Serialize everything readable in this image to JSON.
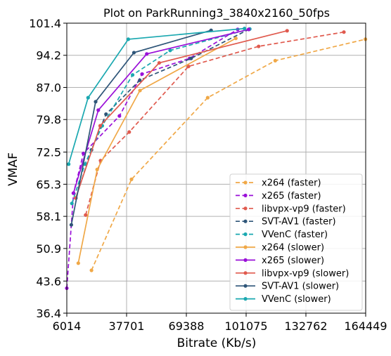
{
  "chart_data": {
    "type": "line",
    "title": "Plot on ParkRunning3_3840x2160_50fps",
    "xlabel": "Bitrate (Kb/s)",
    "ylabel": "VMAF",
    "xlim": [
      6014,
      164449
    ],
    "ylim": [
      36.4,
      101.4
    ],
    "xticks": [
      "6014",
      "37701",
      "69388",
      "101075",
      "132762",
      "164449"
    ],
    "yticks": [
      "36.4",
      "43.6",
      "50.9",
      "58.1",
      "65.3",
      "72.5",
      "79.8",
      "87.0",
      "94.2",
      "101.4"
    ],
    "grid": true,
    "legend_position": "lower-right",
    "series": [
      {
        "name": "x264 (faster)",
        "color": "#f0a847",
        "dash": "dashed",
        "x": [
          19100,
          40300,
          80700,
          116500,
          164300
        ],
        "y": [
          46.0,
          66.4,
          84.7,
          93.0,
          97.8
        ]
      },
      {
        "name": "x265 (faster)",
        "color": "#9a10d8",
        "dash": "dashed",
        "x": [
          6000,
          9600,
          14800,
          33900,
          45900,
          71100,
          96600
        ],
        "y": [
          42.0,
          63.3,
          72.2,
          80.6,
          90.0,
          93.5,
          100.0
        ]
      },
      {
        "name": "libvpx-vp9 (faster)",
        "color": "#e05a4e",
        "dash": "dashed",
        "x": [
          16000,
          23900,
          39100,
          70500,
          107700,
          152900
        ],
        "y": [
          58.4,
          70.6,
          77.0,
          91.7,
          96.2,
          99.4
        ]
      },
      {
        "name": "SVT-AV1 (faster)",
        "color": "#2e5578",
        "dash": "dashed",
        "x": [
          10800,
          19100,
          26800,
          44700,
          71900,
          102500
        ],
        "y": [
          62.2,
          73.0,
          81.0,
          88.6,
          93.5,
          100.0
        ]
      },
      {
        "name": "VVenC (faster)",
        "color": "#1aa8b0",
        "dash": "dashed",
        "x": [
          8700,
          15600,
          24800,
          40900,
          60800,
          103000
        ],
        "y": [
          61.0,
          69.8,
          78.4,
          89.8,
          95.3,
          100.1
        ]
      },
      {
        "name": "x264 (slower)",
        "color": "#f0a847",
        "dash": "solid",
        "x": [
          12100,
          22100,
          44800,
          95600
        ],
        "y": [
          47.6,
          68.6,
          86.3,
          98.0
        ]
      },
      {
        "name": "x265 (slower)",
        "color": "#9a10d8",
        "dash": "solid",
        "x": [
          9500,
          22700,
          48400,
          102400
        ],
        "y": [
          63.3,
          81.9,
          94.5,
          100.0
        ]
      },
      {
        "name": "libvpx-vp9 (slower)",
        "color": "#e05a4e",
        "dash": "solid",
        "x": [
          10700,
          23700,
          55000,
          122800
        ],
        "y": [
          62.2,
          78.4,
          92.5,
          99.7
        ]
      },
      {
        "name": "SVT-AV1 (slower)",
        "color": "#2e5578",
        "dash": "solid",
        "x": [
          8400,
          21300,
          41600,
          82500
        ],
        "y": [
          56.2,
          83.8,
          94.8,
          99.8
        ]
      },
      {
        "name": "VVenC (slower)",
        "color": "#1aa8b0",
        "dash": "solid",
        "x": [
          7000,
          17300,
          38600,
          100200
        ],
        "y": [
          69.8,
          84.7,
          97.8,
          100.2
        ]
      }
    ]
  }
}
